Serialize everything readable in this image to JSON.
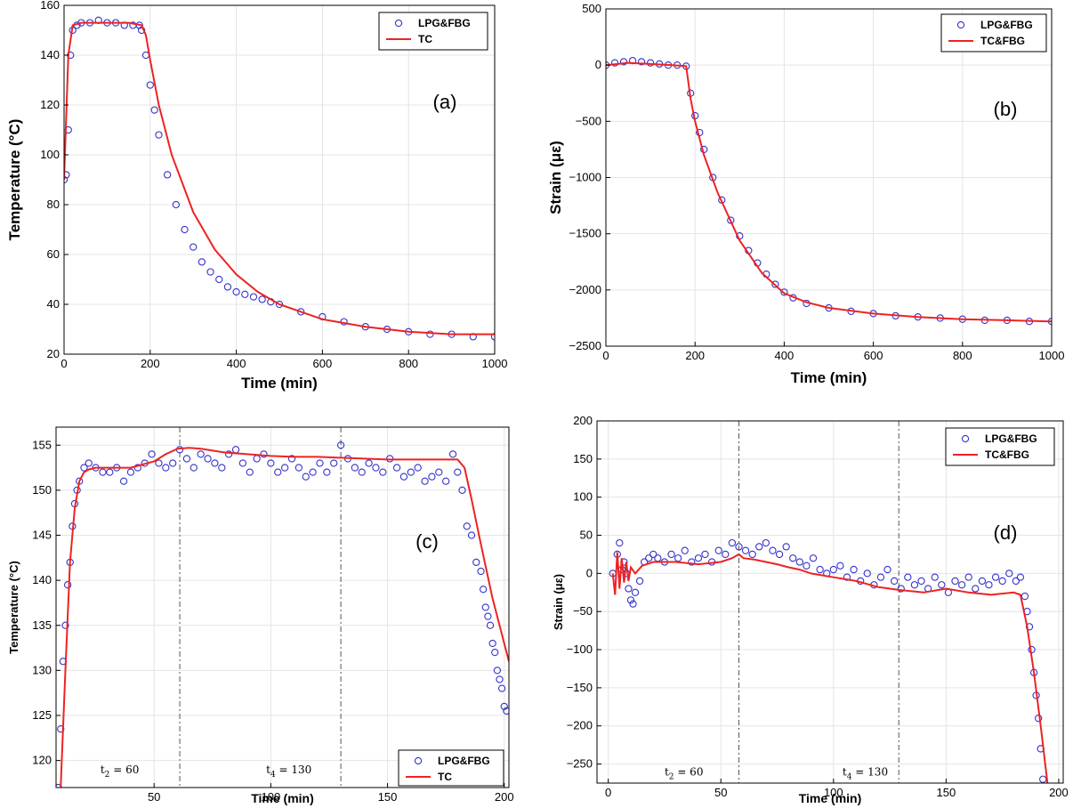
{
  "colors": {
    "points": "#3333cc",
    "line": "#ee2222",
    "dashed": "#555555"
  },
  "chart_data": [
    {
      "type": "scatter",
      "panel_label": "(a)",
      "xlabel": "Time (min)",
      "ylabel": "Temperature (°C)",
      "xlim": [
        0,
        1000
      ],
      "ylim": [
        20,
        160
      ],
      "xticks": [
        0,
        200,
        400,
        600,
        800,
        1000
      ],
      "yticks": [
        20,
        40,
        60,
        80,
        100,
        120,
        140,
        160
      ],
      "grid": true,
      "legend_position": "top-right",
      "series": [
        {
          "name": "LPG&FBG",
          "kind": "markers",
          "x": [
            0,
            5,
            10,
            15,
            20,
            30,
            40,
            60,
            80,
            100,
            120,
            140,
            160,
            175,
            180,
            190,
            200,
            210,
            220,
            240,
            260,
            280,
            300,
            320,
            340,
            360,
            380,
            400,
            420,
            440,
            460,
            480,
            500,
            550,
            600,
            650,
            700,
            750,
            800,
            850,
            900,
            950,
            1000
          ],
          "y": [
            90,
            92,
            110,
            140,
            150,
            152,
            153,
            153,
            154,
            153,
            153,
            152,
            152,
            152,
            150,
            140,
            128,
            118,
            108,
            92,
            80,
            70,
            63,
            57,
            53,
            50,
            47,
            45,
            44,
            43,
            42,
            41,
            40,
            37,
            35,
            33,
            31,
            30,
            29,
            28,
            28,
            27,
            27
          ]
        },
        {
          "name": "TC",
          "kind": "line",
          "x": [
            0,
            10,
            20,
            40,
            60,
            100,
            150,
            180,
            190,
            200,
            220,
            250,
            300,
            350,
            400,
            450,
            500,
            600,
            700,
            800,
            900,
            1000
          ],
          "y": [
            90,
            140,
            152,
            153,
            153,
            153,
            153,
            152,
            148,
            138,
            120,
            100,
            77,
            62,
            52,
            45,
            40,
            34,
            31,
            29,
            28,
            28
          ]
        }
      ]
    },
    {
      "type": "scatter",
      "panel_label": "(b)",
      "xlabel": "Time (min)",
      "ylabel": "Strain (με)",
      "xlim": [
        0,
        1000
      ],
      "ylim": [
        -2500,
        500
      ],
      "xticks": [
        0,
        200,
        400,
        600,
        800,
        1000
      ],
      "yticks": [
        -2500,
        -2000,
        -1500,
        -1000,
        -500,
        0,
        500
      ],
      "grid": true,
      "legend_position": "top-right",
      "series": [
        {
          "name": "LPG&FBG",
          "kind": "markers",
          "x": [
            0,
            20,
            40,
            60,
            80,
            100,
            120,
            140,
            160,
            180,
            190,
            200,
            210,
            220,
            240,
            260,
            280,
            300,
            320,
            340,
            360,
            380,
            400,
            420,
            450,
            500,
            550,
            600,
            650,
            700,
            750,
            800,
            850,
            900,
            950,
            1000
          ],
          "y": [
            0,
            20,
            30,
            40,
            30,
            20,
            10,
            0,
            0,
            -10,
            -250,
            -450,
            -600,
            -750,
            -1000,
            -1200,
            -1380,
            -1520,
            -1650,
            -1760,
            -1860,
            -1950,
            -2020,
            -2070,
            -2120,
            -2160,
            -2190,
            -2210,
            -2230,
            -2240,
            -2250,
            -2260,
            -2270,
            -2270,
            -2280,
            -2280
          ]
        },
        {
          "name": "TC&FBG",
          "kind": "line",
          "x": [
            0,
            50,
            100,
            150,
            180,
            190,
            200,
            220,
            250,
            300,
            350,
            400,
            450,
            500,
            600,
            700,
            800,
            900,
            1000
          ],
          "y": [
            0,
            20,
            10,
            0,
            -10,
            -300,
            -500,
            -800,
            -1130,
            -1560,
            -1850,
            -2030,
            -2110,
            -2160,
            -2210,
            -2240,
            -2260,
            -2270,
            -2280
          ]
        }
      ]
    },
    {
      "type": "scatter",
      "panel_label": "(c)",
      "xlabel": "Time (min)",
      "ylabel": "Temperature (°C)",
      "xlim": [
        8,
        202
      ],
      "ylim": [
        117,
        157
      ],
      "xticks": [
        50,
        100,
        150,
        200
      ],
      "yticks": [
        120,
        125,
        130,
        135,
        140,
        145,
        150,
        155
      ],
      "grid": true,
      "legend_position": "bottom-right",
      "vlines": [
        61,
        130
      ],
      "annotations": [
        {
          "x": 27,
          "y": 118.6,
          "sub": "t",
          "index": "2",
          "eq": " = 60"
        },
        {
          "x": 98,
          "y": 118.6,
          "sub": "t",
          "index": "4",
          "eq": " = 130"
        }
      ],
      "series": [
        {
          "name": "LPG&FBG",
          "kind": "markers",
          "x": [
            9,
            10,
            11,
            12,
            13,
            14,
            15,
            16,
            17,
            18,
            20,
            22,
            25,
            28,
            31,
            34,
            37,
            40,
            43,
            46,
            49,
            52,
            55,
            58,
            61,
            64,
            67,
            70,
            73,
            76,
            79,
            82,
            85,
            88,
            91,
            94,
            97,
            100,
            103,
            106,
            109,
            112,
            115,
            118,
            121,
            124,
            127,
            130,
            133,
            136,
            139,
            142,
            145,
            148,
            151,
            154,
            157,
            160,
            163,
            166,
            169,
            172,
            175,
            178,
            180,
            182,
            184,
            186,
            188,
            190,
            191,
            192,
            193,
            194,
            195,
            196,
            197,
            198,
            199,
            200,
            201
          ],
          "y": [
            117,
            123.5,
            131,
            135,
            139.5,
            142,
            146,
            148.5,
            150,
            151,
            152.5,
            153,
            152.5,
            152,
            152,
            152.5,
            151,
            152,
            152.5,
            153,
            154,
            153,
            152.5,
            153,
            154.5,
            153.5,
            152.5,
            154,
            153.5,
            153,
            152.5,
            154,
            154.5,
            153,
            152,
            153.5,
            154,
            153,
            152,
            152.5,
            153.5,
            152.5,
            151.5,
            152,
            153,
            152,
            153,
            155,
            153.5,
            152.5,
            152,
            153,
            152.5,
            152,
            153.5,
            152.5,
            151.5,
            152,
            152.5,
            151,
            151.5,
            152,
            151,
            154,
            152,
            150,
            146,
            145,
            142,
            141,
            139,
            137,
            136,
            135,
            133,
            132,
            130,
            129,
            128,
            126,
            125.5
          ]
        },
        {
          "name": "TC",
          "kind": "line",
          "x": [
            10,
            12,
            14,
            16,
            18,
            20,
            22,
            25,
            30,
            40,
            50,
            55,
            60,
            65,
            70,
            80,
            90,
            100,
            110,
            120,
            130,
            140,
            150,
            160,
            170,
            180,
            183,
            186,
            190,
            195,
            202
          ],
          "y": [
            117,
            130,
            142,
            148,
            151,
            152,
            152.3,
            152.5,
            152.5,
            152.5,
            153.2,
            154,
            154.6,
            154.7,
            154.6,
            154.2,
            154,
            153.8,
            153.7,
            153.7,
            153.6,
            153.5,
            153.4,
            153.4,
            153.4,
            153.4,
            152.5,
            149,
            144,
            138,
            131
          ]
        }
      ]
    },
    {
      "type": "scatter",
      "panel_label": "(d)",
      "xlabel": "Time (min)",
      "ylabel": "Strain (με)",
      "xlim": [
        -5,
        202
      ],
      "ylim": [
        -275,
        200
      ],
      "xticks": [
        0,
        50,
        100,
        150,
        200
      ],
      "yticks": [
        -250,
        -200,
        -150,
        -100,
        -50,
        0,
        50,
        100,
        150,
        200
      ],
      "grid": true,
      "legend_position": "top-right",
      "vlines": [
        58,
        129
      ],
      "annotations": [
        {
          "x": 25,
          "y": -265,
          "sub": "t",
          "index": "2",
          "eq": " = 60"
        },
        {
          "x": 104,
          "y": -265,
          "sub": "t",
          "index": "4",
          "eq": " = 130"
        }
      ],
      "series": [
        {
          "name": "LPG&FBG",
          "kind": "markers",
          "x": [
            2,
            4,
            5,
            6,
            7,
            8,
            9,
            10,
            11,
            12,
            14,
            16,
            18,
            20,
            22,
            25,
            28,
            31,
            34,
            37,
            40,
            43,
            46,
            49,
            52,
            55,
            58,
            61,
            64,
            67,
            70,
            73,
            76,
            79,
            82,
            85,
            88,
            91,
            94,
            97,
            100,
            103,
            106,
            109,
            112,
            115,
            118,
            121,
            124,
            127,
            130,
            133,
            136,
            139,
            142,
            145,
            148,
            151,
            154,
            157,
            160,
            163,
            166,
            169,
            172,
            175,
            178,
            181,
            183,
            185,
            186,
            187,
            188,
            189,
            190,
            191,
            192,
            193
          ],
          "y": [
            0,
            25,
            40,
            5,
            15,
            0,
            -20,
            -35,
            -40,
            -25,
            -10,
            15,
            20,
            25,
            20,
            15,
            25,
            20,
            30,
            15,
            20,
            25,
            15,
            30,
            25,
            40,
            35,
            30,
            25,
            35,
            40,
            30,
            25,
            35,
            20,
            15,
            10,
            20,
            5,
            0,
            5,
            10,
            -5,
            5,
            -10,
            0,
            -15,
            -5,
            5,
            -10,
            -20,
            -5,
            -15,
            -10,
            -20,
            -5,
            -15,
            -25,
            -10,
            -15,
            -5,
            -20,
            -10,
            -15,
            -5,
            -10,
            0,
            -10,
            -5,
            -30,
            -50,
            -70,
            -100,
            -130,
            -160,
            -190,
            -230,
            -270
          ]
        },
        {
          "name": "TC&FBG",
          "kind": "line",
          "x": [
            2,
            3,
            4,
            5,
            6,
            7,
            8,
            9,
            10,
            12,
            15,
            20,
            30,
            40,
            50,
            55,
            58,
            60,
            65,
            70,
            75,
            80,
            85,
            90,
            100,
            110,
            120,
            130,
            140,
            150,
            160,
            170,
            180,
            183,
            186,
            189,
            192,
            195
          ],
          "y": [
            0,
            -28,
            28,
            -20,
            20,
            -12,
            15,
            -10,
            8,
            0,
            10,
            15,
            15,
            12,
            15,
            20,
            25,
            20,
            18,
            15,
            12,
            8,
            5,
            0,
            -5,
            -10,
            -18,
            -22,
            -25,
            -20,
            -25,
            -28,
            -25,
            -28,
            -70,
            -130,
            -200,
            -275
          ]
        }
      ]
    }
  ]
}
